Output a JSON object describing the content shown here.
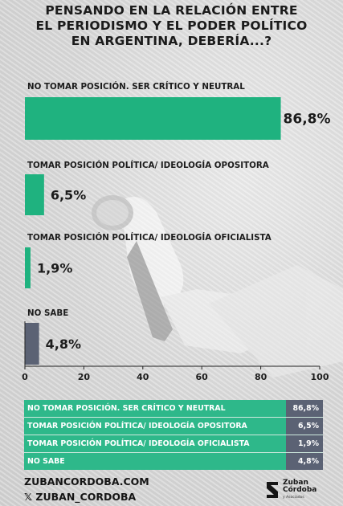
{
  "title_lines": [
    "PENSANDO EN LA RELACIÓN ENTRE",
    "EL PERIODISMO Y EL PODER POLÍTICO",
    "EN ARGENTINA, DEBERÍA...?"
  ],
  "chart_data": {
    "type": "bar",
    "orientation": "horizontal",
    "categories": [
      "NO TOMAR POSICIÓN. SER CRÍTICO Y NEUTRAL",
      "TOMAR POSICIÓN POLÍTICA/ IDEOLOGÍA OPOSITORA",
      "TOMAR POSICIÓN POLÍTICA/ IDEOLOGÍA OFICIALISTA",
      "NO SABE"
    ],
    "values": [
      86.8,
      6.5,
      1.9,
      4.8
    ],
    "value_labels": [
      "86,8%",
      "6,5%",
      "1,9%",
      "4,8%"
    ],
    "colors": [
      "#1fb27f",
      "#1fb27f",
      "#1fb27f",
      "#5b6274"
    ],
    "xlim": [
      0,
      100
    ],
    "xticks": [
      0,
      20,
      40,
      60,
      80,
      100
    ],
    "grid": false,
    "legend": "none"
  },
  "summary_table": [
    {
      "label": "NO TOMAR POSICIÓN. SER CRÍTICO Y NEUTRAL",
      "value": "86,8%"
    },
    {
      "label": "TOMAR POSICIÓN POLÍTICA/ IDEOLOGÍA OPOSITORA",
      "value": "6,5%"
    },
    {
      "label": "TOMAR POSICIÓN POLÍTICA/ IDEOLOGÍA OFICIALISTA",
      "value": "1,9%"
    },
    {
      "label": "NO SABE",
      "value": "4,8%"
    }
  ],
  "footer": {
    "website": "ZUBANCORDOBA.COM",
    "social": "𝕏 ZUBAN_CORDOBA",
    "logo_line1": "Zuban",
    "logo_line2": "Córdoba",
    "logo_sub": "y Asociados",
    "logo_icon": "zuban-cordoba-mark-icon"
  }
}
